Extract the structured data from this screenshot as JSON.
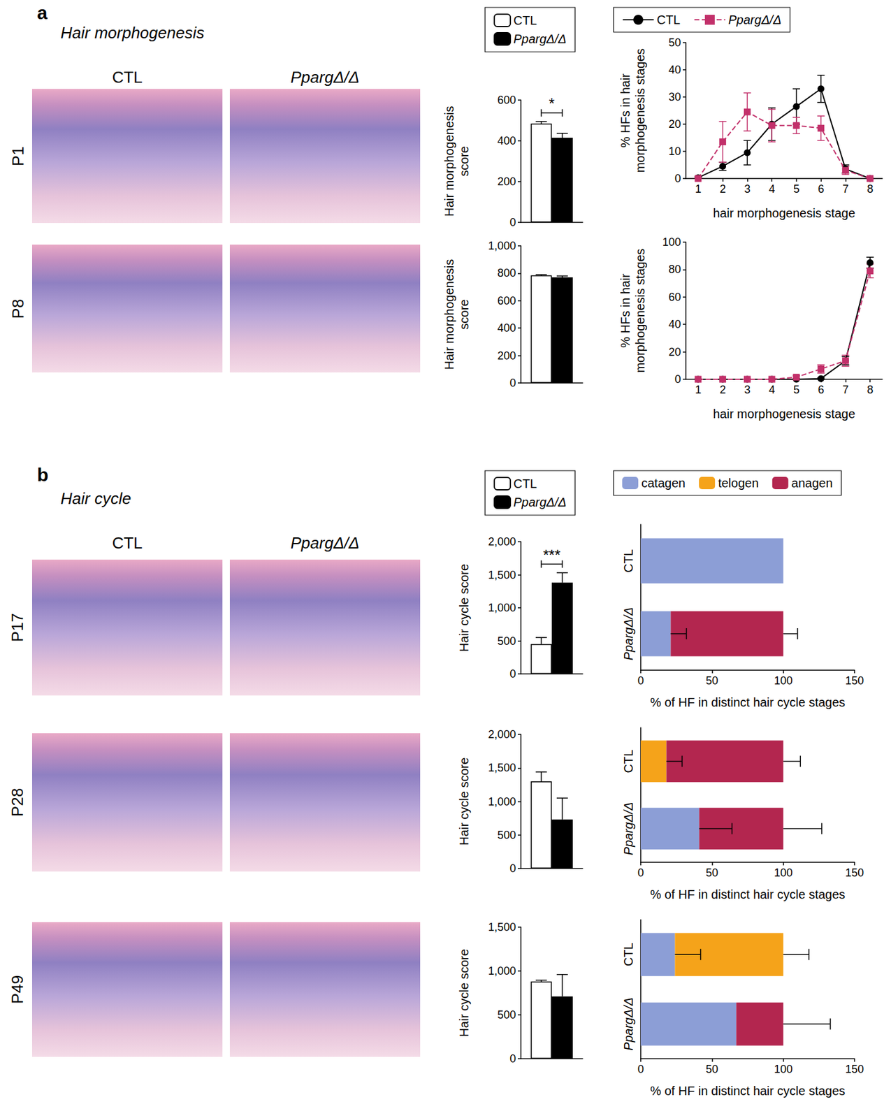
{
  "figure": {
    "panels": [
      {
        "letter": "a",
        "title": "Hair morphogenesis",
        "columns": [
          "CTL",
          "PpargΔ/Δ"
        ],
        "rows": [
          "P1",
          "P8"
        ]
      },
      {
        "letter": "b",
        "title": "Hair cycle",
        "columns": [
          "CTL",
          "PpargΔ/Δ"
        ],
        "rows": [
          "P17",
          "P28",
          "P49"
        ]
      }
    ]
  },
  "chart_data": [
    {
      "type": "bar",
      "categories": [
        null
      ],
      "tick_labels": "y",
      "ylabel": "Hair morphogenesis\nscore",
      "ylim": [
        0,
        600
      ],
      "yticks": [
        0,
        200,
        400,
        600
      ],
      "grid": false,
      "legend": "top",
      "annotation": "*",
      "series": [
        {
          "name": "CTL",
          "color": "#ffffff",
          "values": [
            485
          ],
          "errors": [
            10
          ]
        },
        {
          "name": "PpargΔ/Δ",
          "color": "#000000",
          "values": [
            415
          ],
          "errors": [
            22
          ]
        }
      ]
    },
    {
      "type": "line",
      "x": [
        1,
        2,
        3,
        4,
        5,
        6,
        7,
        8
      ],
      "xlabel": "hair morphogenesis stage",
      "ylabel": "% HFs in hair\nmorphogenesis stages",
      "xlim": [
        0.5,
        8.5
      ],
      "xticks": [
        1,
        2,
        3,
        4,
        5,
        6,
        7,
        8
      ],
      "ylim": [
        0,
        50
      ],
      "yticks": [
        0,
        10,
        20,
        30,
        40,
        50
      ],
      "grid": false,
      "legend": "top",
      "series": [
        {
          "name": "CTL",
          "color": "#000000",
          "marker": "circle",
          "line_style": "solid",
          "values": [
            0.3,
            4.5,
            9.5,
            20,
            26.5,
            33,
            3.5,
            0
          ],
          "errors": [
            0.3,
            1.5,
            4.5,
            6,
            6.5,
            5,
            1.5,
            0
          ]
        },
        {
          "name": "PpargΔ/Δ",
          "color": "#c2306a",
          "marker": "square",
          "line_style": "dashed",
          "values": [
            0,
            13.5,
            24.5,
            19.5,
            19.5,
            18.5,
            3,
            0
          ],
          "errors": [
            0,
            7.5,
            7,
            6,
            3,
            4.5,
            1.5,
            0
          ]
        }
      ]
    },
    {
      "type": "bar",
      "categories": [
        null
      ],
      "tick_labels": "y",
      "ylabel": "Hair morphogenesis\nscore",
      "ylim": [
        0,
        1000
      ],
      "yticks": [
        0,
        200,
        400,
        600,
        800,
        1000
      ],
      "grid": false,
      "series": [
        {
          "name": "CTL",
          "color": "#ffffff",
          "values": [
            785
          ],
          "errors": [
            5
          ]
        },
        {
          "name": "PpargΔ/Δ",
          "color": "#000000",
          "values": [
            770
          ],
          "errors": [
            10
          ]
        }
      ]
    },
    {
      "type": "line",
      "x": [
        1,
        2,
        3,
        4,
        5,
        6,
        7,
        8
      ],
      "xlabel": "hair morphogenesis stage",
      "ylabel": "% HFs in hair\nmorphogenesis stages",
      "xlim": [
        0.5,
        8.5
      ],
      "xticks": [
        1,
        2,
        3,
        4,
        5,
        6,
        7,
        8
      ],
      "ylim": [
        0,
        100
      ],
      "yticks": [
        0,
        20,
        40,
        60,
        80,
        100
      ],
      "grid": false,
      "series": [
        {
          "name": "CTL",
          "color": "#000000",
          "marker": "circle",
          "line_style": "solid",
          "values": [
            0,
            0,
            0,
            0,
            0,
            0.5,
            13.5,
            85
          ],
          "errors": [
            0,
            0,
            0,
            0,
            0,
            0.5,
            3,
            4
          ]
        },
        {
          "name": "PpargΔ/Δ",
          "color": "#c2306a",
          "marker": "square",
          "line_style": "dashed",
          "values": [
            0,
            0,
            0,
            0,
            1.5,
            7.5,
            13.5,
            79
          ],
          "errors": [
            0,
            0,
            0,
            0,
            1,
            3,
            4,
            5
          ]
        }
      ]
    },
    {
      "type": "bar",
      "categories": [
        null
      ],
      "tick_labels": "y",
      "ylabel": "Hair cycle score",
      "ylim": [
        0,
        2000
      ],
      "yticks": [
        0,
        500,
        1000,
        1500,
        2000
      ],
      "grid": false,
      "legend": "top",
      "annotation": "***",
      "series": [
        {
          "name": "CTL",
          "color": "#ffffff",
          "values": [
            450
          ],
          "errors": [
            100
          ]
        },
        {
          "name": "PpargΔ/Δ",
          "color": "#000000",
          "values": [
            1380
          ],
          "errors": [
            150
          ]
        }
      ]
    },
    {
      "type": "bar",
      "orientation": "horizontal",
      "stacked": true,
      "categories": [
        "CTL",
        "PpargΔ/Δ"
      ],
      "xlabel": "% of HF in distinct hair cycle stages",
      "xlim": [
        0,
        150
      ],
      "xticks": [
        0,
        50,
        100,
        150
      ],
      "grid": false,
      "legend": "top",
      "series": [
        {
          "name": "catagen",
          "color": "#8c9ed6",
          "values": [
            100,
            21
          ],
          "errors": [
            null,
            11
          ]
        },
        {
          "name": "telogen",
          "color": "#f5a31a",
          "values": [
            null,
            null
          ],
          "errors": [
            null,
            null
          ]
        },
        {
          "name": "anagen",
          "color": "#b3264f",
          "values": [
            null,
            79
          ],
          "errors": [
            null,
            10
          ]
        }
      ]
    },
    {
      "type": "bar",
      "categories": [
        null
      ],
      "tick_labels": "y",
      "ylabel": "Hair cycle score",
      "ylim": [
        0,
        2000
      ],
      "yticks": [
        0,
        500,
        1000,
        1500,
        2000
      ],
      "grid": false,
      "series": [
        {
          "name": "CTL",
          "color": "#ffffff",
          "values": [
            1300
          ],
          "errors": [
            140
          ]
        },
        {
          "name": "PpargΔ/Δ",
          "color": "#000000",
          "values": [
            730
          ],
          "errors": [
            320
          ]
        }
      ]
    },
    {
      "type": "bar",
      "orientation": "horizontal",
      "stacked": true,
      "categories": [
        "CTL",
        "PpargΔ/Δ"
      ],
      "xlabel": "% of HF in distinct hair cycle stages",
      "xlim": [
        0,
        150
      ],
      "xticks": [
        0,
        50,
        100,
        150
      ],
      "grid": false,
      "series": [
        {
          "name": "catagen",
          "color": "#8c9ed6",
          "values": [
            null,
            41
          ],
          "errors": [
            null,
            23
          ]
        },
        {
          "name": "telogen",
          "color": "#f5a31a",
          "values": [
            18,
            null
          ],
          "errors": [
            11,
            null
          ]
        },
        {
          "name": "anagen",
          "color": "#b3264f",
          "values": [
            82,
            59
          ],
          "errors": [
            12,
            27
          ]
        }
      ]
    },
    {
      "type": "bar",
      "categories": [
        null
      ],
      "tick_labels": "y",
      "ylabel": "Hair cycle score",
      "ylim": [
        0,
        1500
      ],
      "yticks": [
        0,
        500,
        1000,
        1500
      ],
      "grid": false,
      "series": [
        {
          "name": "CTL",
          "color": "#ffffff",
          "values": [
            880
          ],
          "errors": [
            15
          ]
        },
        {
          "name": "PpargΔ/Δ",
          "color": "#000000",
          "values": [
            710
          ],
          "errors": [
            250
          ]
        }
      ]
    },
    {
      "type": "bar",
      "orientation": "horizontal",
      "stacked": true,
      "categories": [
        "CTL",
        "PpargΔ/Δ"
      ],
      "xlabel": "% of HF in distinct hair cycle stages",
      "xlim": [
        0,
        150
      ],
      "xticks": [
        0,
        50,
        100,
        150
      ],
      "grid": false,
      "series": [
        {
          "name": "catagen",
          "color": "#8c9ed6",
          "values": [
            24,
            67
          ],
          "errors": [
            18,
            null
          ]
        },
        {
          "name": "telogen",
          "color": "#f5a31a",
          "values": [
            76,
            null
          ],
          "errors": [
            18,
            null
          ]
        },
        {
          "name": "anagen",
          "color": "#b3264f",
          "values": [
            null,
            33
          ],
          "errors": [
            null,
            33
          ]
        }
      ]
    }
  ]
}
